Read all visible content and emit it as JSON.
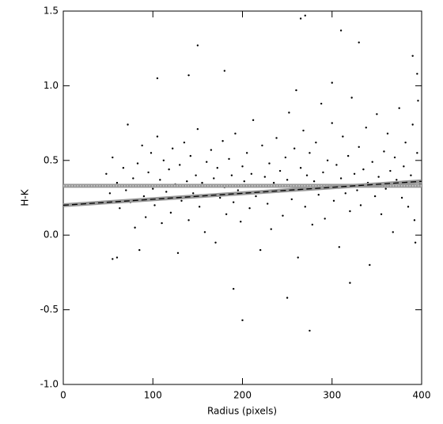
{
  "chart_data": {
    "type": "scatter",
    "xlabel": "Radius (pixels)",
    "ylabel": "H-K",
    "xlim": [
      0,
      400
    ],
    "xticks": [
      0,
      100,
      200,
      300,
      400
    ],
    "ylim": [
      -1.0,
      1.5
    ],
    "yticks": [
      {
        "value": -1.0,
        "label": "-1.0"
      },
      {
        "value": -0.5,
        "label": "-0.5"
      },
      {
        "value": 0.0,
        "label": "0.0"
      },
      {
        "value": 0.5,
        "label": "0.5"
      },
      {
        "value": 1.0,
        "label": "1.0"
      },
      {
        "value": 1.5,
        "label": "1.5"
      }
    ],
    "grid": false,
    "series": [
      {
        "color": "#000000",
        "x": [
          48,
          52,
          55,
          60,
          63,
          67,
          70,
          72,
          75,
          78,
          80,
          83,
          85,
          88,
          90,
          92,
          95,
          98,
          100,
          102,
          105,
          108,
          110,
          112,
          115,
          118,
          120,
          122,
          125,
          128,
          130,
          132,
          135,
          138,
          140,
          142,
          145,
          148,
          150,
          152,
          155,
          158,
          160,
          162,
          165,
          168,
          170,
          172,
          175,
          178,
          180,
          182,
          185,
          188,
          190,
          192,
          195,
          198,
          200,
          202,
          205,
          208,
          210,
          212,
          215,
          218,
          220,
          222,
          225,
          228,
          230,
          232,
          235,
          238,
          240,
          242,
          245,
          248,
          250,
          252,
          255,
          258,
          260,
          262,
          265,
          268,
          270,
          272,
          275,
          278,
          280,
          282,
          285,
          288,
          290,
          292,
          295,
          298,
          300,
          302,
          305,
          308,
          310,
          312,
          315,
          318,
          320,
          322,
          325,
          328,
          330,
          332,
          335,
          338,
          340,
          342,
          345,
          348,
          350,
          352,
          355,
          358,
          360,
          362,
          365,
          368,
          370,
          372,
          375,
          378,
          380,
          382,
          385,
          388,
          390,
          392,
          395,
          398,
          396,
          393,
          150,
          180,
          265,
          270,
          310,
          330,
          105,
          140,
          200,
          275,
          190,
          55,
          320,
          260,
          300,
          395,
          390,
          60,
          250,
          85
        ],
        "values": [
          0.41,
          0.28,
          0.52,
          0.35,
          0.18,
          0.45,
          0.3,
          0.74,
          0.22,
          0.38,
          0.05,
          0.48,
          0.33,
          0.6,
          0.26,
          0.12,
          0.42,
          0.55,
          0.31,
          0.2,
          0.66,
          0.37,
          0.08,
          0.5,
          0.29,
          0.44,
          0.15,
          0.58,
          0.34,
          -0.12,
          0.47,
          0.23,
          0.62,
          0.36,
          0.1,
          0.53,
          0.28,
          0.4,
          0.71,
          0.19,
          0.35,
          0.02,
          0.49,
          0.27,
          0.57,
          0.38,
          -0.05,
          0.45,
          0.25,
          0.63,
          0.32,
          0.14,
          0.51,
          0.4,
          0.22,
          0.68,
          0.3,
          0.09,
          0.46,
          0.36,
          0.55,
          0.18,
          0.41,
          0.77,
          0.26,
          0.33,
          -0.1,
          0.6,
          0.39,
          0.21,
          0.48,
          0.04,
          0.35,
          0.65,
          0.29,
          0.43,
          0.13,
          0.52,
          0.37,
          0.82,
          0.24,
          0.58,
          0.31,
          -0.15,
          0.45,
          0.7,
          0.19,
          0.4,
          0.55,
          0.07,
          0.36,
          0.62,
          0.27,
          0.88,
          0.42,
          0.11,
          0.5,
          0.33,
          0.75,
          0.23,
          0.47,
          -0.08,
          0.38,
          0.66,
          0.28,
          0.53,
          0.16,
          0.92,
          0.41,
          0.3,
          0.59,
          0.2,
          0.44,
          0.72,
          0.35,
          -0.2,
          0.49,
          0.26,
          0.81,
          0.39,
          0.14,
          0.56,
          0.31,
          0.68,
          0.43,
          0.02,
          0.52,
          0.37,
          0.85,
          0.25,
          0.46,
          0.62,
          0.19,
          0.4,
          0.74,
          0.1,
          0.55,
          0.34,
          0.9,
          -0.05,
          1.27,
          1.1,
          1.45,
          1.47,
          1.37,
          1.29,
          1.05,
          1.07,
          -0.57,
          -0.64,
          -0.36,
          -0.16,
          -0.32,
          0.97,
          1.02,
          1.08,
          1.2,
          -0.15,
          -0.42,
          -0.1
        ]
      }
    ],
    "lines": [
      {
        "x": [
          0,
          400
        ],
        "values": [
          0.33,
          0.33
        ],
        "color": "#999999",
        "style": "dotted"
      },
      {
        "x": [
          0,
          400
        ],
        "values": [
          0.2,
          0.36
        ],
        "color": "#999999",
        "style": "dashed"
      }
    ]
  }
}
